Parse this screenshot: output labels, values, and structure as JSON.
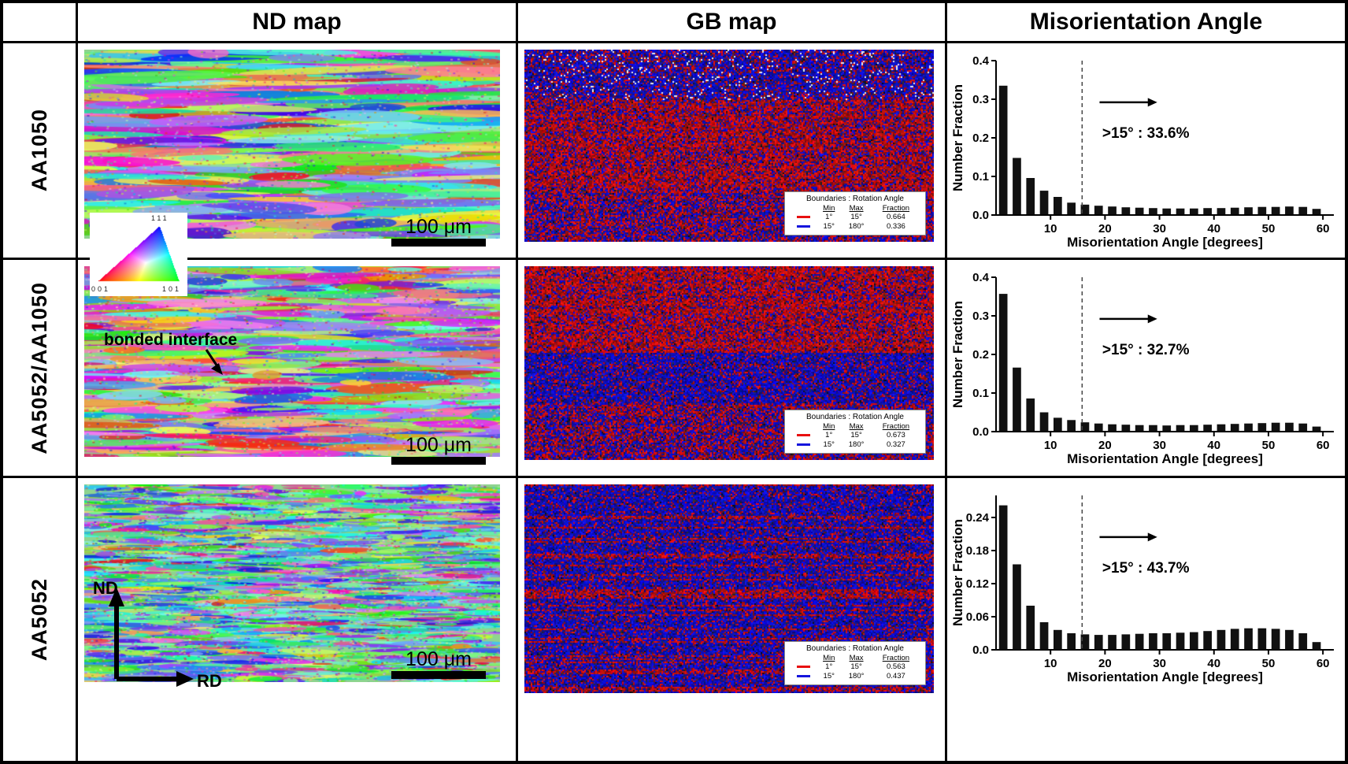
{
  "header": {
    "columns": [
      "ND map",
      "GB map",
      "Misorientation Angle"
    ]
  },
  "scale_bar_label": "100 μm",
  "gb_legend": {
    "title": "Boundaries : Rotation Angle",
    "columns": [
      "Min",
      "Max",
      "Fraction"
    ]
  },
  "rows": [
    {
      "label": "AA1050",
      "gb_entries": [
        {
          "color": "#e81010",
          "min": "1°",
          "max": "15°",
          "fraction": "0.664"
        },
        {
          "color": "#1515dd",
          "min": "15°",
          "max": "180°",
          "fraction": "0.336"
        }
      ]
    },
    {
      "label": "AA5052/AA1050",
      "gb_entries": [
        {
          "color": "#e81010",
          "min": "1°",
          "max": "15°",
          "fraction": "0.673"
        },
        {
          "color": "#1515dd",
          "min": "15°",
          "max": "180°",
          "fraction": "0.327"
        }
      ]
    },
    {
      "label": "AA5052",
      "gb_entries": [
        {
          "color": "#e81010",
          "min": "1°",
          "max": "15°",
          "fraction": "0.563"
        },
        {
          "color": "#1515dd",
          "min": "15°",
          "max": "180°",
          "fraction": "0.437"
        }
      ]
    }
  ],
  "ipf": {
    "v111": "111",
    "v001": "001",
    "v101": "101"
  },
  "annotations": {
    "bonded_interface": "bonded interface",
    "nd_axis": "ND",
    "rd_axis": "RD"
  },
  "chart_data": [
    {
      "type": "bar",
      "title": "AA1050 misorientation angle distribution",
      "xlabel": "Misorientation Angle [degrees]",
      "ylabel": "Number Fraction",
      "bin_width": 2.5,
      "xlim": [
        0,
        62
      ],
      "x_ticks": [
        10,
        20,
        30,
        40,
        50,
        60
      ],
      "ylim": [
        0,
        0.4
      ],
      "y_ticks": [
        0,
        0.1,
        0.2,
        0.3,
        0.4
      ],
      "y_tick_labels": [
        "0.0",
        "0.1",
        "0.2",
        "0.3",
        "0.4"
      ],
      "values": [
        0.335,
        0.148,
        0.096,
        0.063,
        0.047,
        0.032,
        0.027,
        0.024,
        0.022,
        0.02,
        0.019,
        0.018,
        0.017,
        0.017,
        0.017,
        0.018,
        0.018,
        0.019,
        0.02,
        0.021,
        0.021,
        0.022,
        0.021,
        0.016
      ],
      "threshold_line_x": 15.8,
      "annotation": ">15° : 33.6%"
    },
    {
      "type": "bar",
      "title": "AA5052/AA1050 misorientation angle distribution",
      "xlabel": "Misorientation Angle [degrees]",
      "ylabel": "Number Fraction",
      "bin_width": 2.5,
      "xlim": [
        0,
        62
      ],
      "x_ticks": [
        10,
        20,
        30,
        40,
        50,
        60
      ],
      "ylim": [
        0,
        0.4
      ],
      "y_ticks": [
        0,
        0.1,
        0.2,
        0.3,
        0.4
      ],
      "y_tick_labels": [
        "0.0",
        "0.1",
        "0.2",
        "0.3",
        "0.4"
      ],
      "values": [
        0.357,
        0.166,
        0.086,
        0.05,
        0.036,
        0.03,
        0.024,
        0.021,
        0.019,
        0.018,
        0.017,
        0.017,
        0.016,
        0.017,
        0.017,
        0.018,
        0.019,
        0.02,
        0.021,
        0.022,
        0.023,
        0.023,
        0.021,
        0.013
      ],
      "threshold_line_x": 15.8,
      "annotation": ">15° : 32.7%"
    },
    {
      "type": "bar",
      "title": "AA5052 misorientation angle distribution",
      "xlabel": "Misorientation Angle [degrees]",
      "ylabel": "Number Fraction",
      "bin_width": 2.5,
      "xlim": [
        0,
        62
      ],
      "x_ticks": [
        10,
        20,
        30,
        40,
        50,
        60
      ],
      "ylim": [
        0,
        0.28
      ],
      "y_ticks": [
        0,
        0.06,
        0.12,
        0.18,
        0.24
      ],
      "y_tick_labels": [
        "0.0",
        "0.06",
        "0.12",
        "0.18",
        "0.24"
      ],
      "values": [
        0.262,
        0.155,
        0.08,
        0.05,
        0.036,
        0.03,
        0.028,
        0.027,
        0.027,
        0.028,
        0.029,
        0.03,
        0.03,
        0.031,
        0.032,
        0.034,
        0.036,
        0.038,
        0.039,
        0.039,
        0.038,
        0.036,
        0.03,
        0.014
      ],
      "threshold_line_x": 15.8,
      "annotation": ">15° : 43.7%"
    }
  ]
}
